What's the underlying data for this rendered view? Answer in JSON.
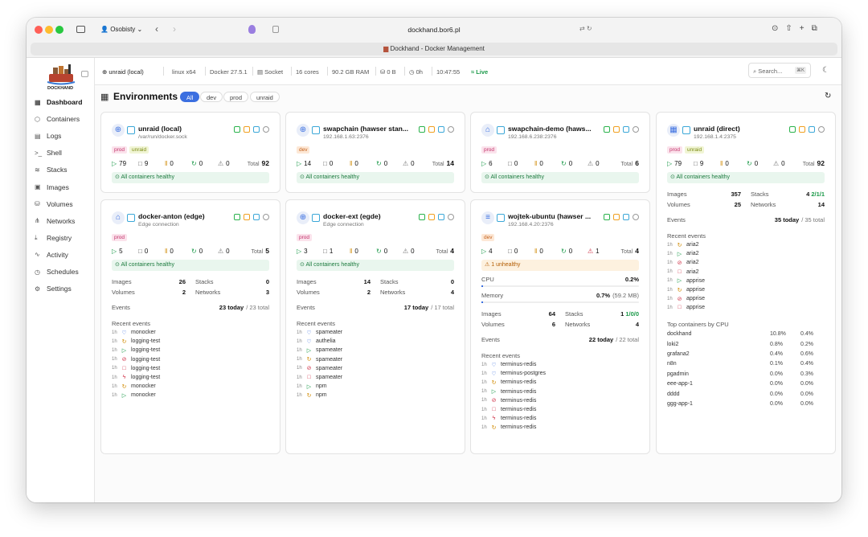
{
  "browser": {
    "profile": "Osobisty",
    "url": "dockhand.bor6.pl",
    "tab_title": "Dockhand - Docker Management"
  },
  "sidebar": {
    "logo": "DOCKHAND",
    "nav": [
      "Dashboard",
      "Containers",
      "Logs",
      "Shell",
      "Stacks",
      "Images",
      "Volumes",
      "Networks",
      "Registry",
      "Activity",
      "Schedules",
      "Settings"
    ]
  },
  "topbar": {
    "environment": "unraid (local)",
    "items": [
      "linux x64",
      "Docker 27.5.1",
      "Socket",
      "16 cores",
      "90.2 GB RAM",
      "0 B",
      "0h",
      "10:47:55"
    ],
    "live": "Live",
    "search": "Search...",
    "shortcut": "⌘K"
  },
  "header": {
    "title": "Environments",
    "filters": [
      "All",
      "dev",
      "prod",
      "unraid"
    ]
  },
  "labels": {
    "total": "Total",
    "images": "Images",
    "stacks": "Stacks",
    "volumes": "Volumes",
    "networks": "Networks",
    "events": "Events",
    "recent_events": "Recent events",
    "cpu": "CPU",
    "memory": "Memory",
    "top_cpu": "Top containers by CPU"
  },
  "cards": [
    {
      "name": "unraid (local)",
      "address": "/var/run/docker.sock",
      "tags": [
        "prod",
        "unraid"
      ],
      "stats": [
        79,
        9,
        0,
        0,
        0
      ],
      "total": 92,
      "status": "All containers healthy"
    },
    {
      "name": "swapchain (hawser stan...",
      "address": "192.168.1.63:2376",
      "tags": [
        "dev"
      ],
      "stats": [
        14,
        0,
        0,
        0,
        0
      ],
      "total": 14,
      "status": "All containers healthy"
    },
    {
      "name": "swapchain-demo (haws...",
      "address": "192.168.6.238:2376",
      "tags": [
        "prod"
      ],
      "stats": [
        6,
        0,
        0,
        0,
        0
      ],
      "total": 6,
      "status": "All containers healthy"
    },
    {
      "name": "unraid (direct)",
      "address": "192.168.1.4:2375",
      "tags": [
        "prod",
        "unraid"
      ],
      "stats": [
        79,
        9,
        0,
        0,
        0
      ],
      "total": 92,
      "status": "All containers healthy",
      "resources": {
        "images": 357,
        "stacks": 4,
        "stacks_detail": "2/1/1",
        "volumes": 25,
        "networks": 14
      },
      "events_today": "35 today",
      "events_total": "/ 35 total",
      "recent": [
        [
          "1h",
          "aria2"
        ],
        [
          "1h",
          "aria2"
        ],
        [
          "1h",
          "aria2"
        ],
        [
          "1h",
          "aria2"
        ],
        [
          "1h",
          "apprise"
        ],
        [
          "1h",
          "apprise"
        ],
        [
          "1h",
          "apprise"
        ],
        [
          "1h",
          "apprise"
        ]
      ],
      "top_cpu": [
        [
          "dockhand",
          "10.8%",
          "0.4%"
        ],
        [
          "loki2",
          "0.8%",
          "0.2%"
        ],
        [
          "grafana2",
          "0.4%",
          "0.6%"
        ],
        [
          "n8n",
          "0.1%",
          "0.4%"
        ],
        [
          "pgadmin",
          "0.0%",
          "0.3%"
        ],
        [
          "eee-app-1",
          "0.0%",
          "0.0%"
        ],
        [
          "dddd",
          "0.0%",
          "0.0%"
        ],
        [
          "ggg-app-1",
          "0.0%",
          "0.0%"
        ]
      ]
    },
    {
      "name": "docker-anton (edge)",
      "address": "Edge connection",
      "tags": [
        "prod"
      ],
      "stats": [
        5,
        0,
        0,
        0,
        0
      ],
      "total": 5,
      "status": "All containers healthy",
      "resources": {
        "images": 26,
        "stacks": 0,
        "volumes": 2,
        "networks": 3
      },
      "events_today": "23 today",
      "events_total": "/ 23 total",
      "recent": [
        [
          "1h",
          "monocker"
        ],
        [
          "1h",
          "logging-test"
        ],
        [
          "1h",
          "logging-test"
        ],
        [
          "1h",
          "logging-test"
        ],
        [
          "1h",
          "logging-test"
        ],
        [
          "1h",
          "logging-test"
        ],
        [
          "1h",
          "monocker"
        ],
        [
          "1h",
          "monocker"
        ]
      ]
    },
    {
      "name": "docker-ext (egde)",
      "address": "Edge connection",
      "tags": [
        "prod"
      ],
      "stats": [
        3,
        1,
        0,
        0,
        0
      ],
      "total": 4,
      "status": "All containers healthy",
      "resources": {
        "images": 14,
        "stacks": 0,
        "volumes": 2,
        "networks": 4
      },
      "events_today": "17 today",
      "events_total": "/ 17 total",
      "recent": [
        [
          "1h",
          "spameater"
        ],
        [
          "1h",
          "authelia"
        ],
        [
          "1h",
          "spameater"
        ],
        [
          "1h",
          "spameater"
        ],
        [
          "1h",
          "spameater"
        ],
        [
          "1h",
          "spameater"
        ],
        [
          "1h",
          "npm"
        ],
        [
          "1h",
          "npm"
        ]
      ]
    },
    {
      "name": "wojtek-ubuntu (hawser ...",
      "address": "192.168.4.20:2376",
      "tags": [
        "dev"
      ],
      "stats": [
        4,
        0,
        0,
        0,
        1
      ],
      "total": 4,
      "status": "1 unhealthy",
      "cpu": "0.2%",
      "memory": "0.7%",
      "memory_detail": "(59.2 MB)",
      "resources": {
        "images": 64,
        "stacks": 1,
        "stacks_detail": "1/0/0",
        "volumes": 6,
        "networks": 4
      },
      "events_today": "22 today",
      "events_total": "/ 22 total",
      "recent": [
        [
          "1h",
          "terminus-redis"
        ],
        [
          "1h",
          "terminus-postgres"
        ],
        [
          "1h",
          "terminus-redis"
        ],
        [
          "1h",
          "terminus-redis"
        ],
        [
          "1h",
          "terminus-redis"
        ],
        [
          "1h",
          "terminus-redis"
        ],
        [
          "1h",
          "terminus-redis"
        ],
        [
          "1h",
          "terminus-redis"
        ]
      ]
    }
  ]
}
